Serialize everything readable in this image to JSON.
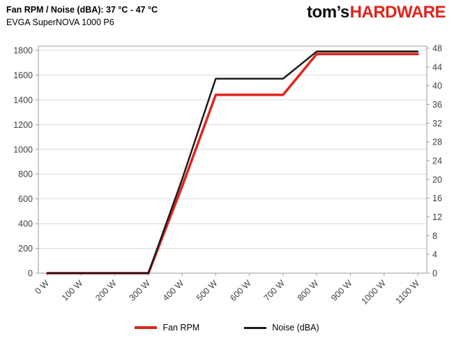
{
  "header": {
    "logo": {
      "black": "tom’s",
      "red": "HARDWARE"
    }
  },
  "colors": {
    "logo_red": "#e2231a",
    "grid": "#d9d9d9",
    "plot_border": "#9b9b9b",
    "tick_text": "#404040",
    "fan_rpm": "#e2231a",
    "noise": "#1a1a1a"
  },
  "chart_data": {
    "type": "line",
    "title": "Fan RPM / Noise (dBA): 37 °C - 47 °C",
    "subtitle": "EVGA SuperNOVA 1000 P6",
    "x": [
      0,
      100,
      200,
      300,
      400,
      500,
      600,
      700,
      800,
      900,
      1000,
      1100
    ],
    "x_tick_labels": [
      "0 W",
      "100 W",
      "200 W",
      "300 W",
      "400 W",
      "500 W",
      "600 W",
      "700 W",
      "800 W",
      "900 W",
      "1000 W",
      "1100 W"
    ],
    "series": [
      {
        "name": "Fan RPM",
        "axis": "left",
        "color": "#e2231a",
        "values": [
          0,
          0,
          0,
          0,
          700,
          1440,
          1440,
          1440,
          1770,
          1770,
          1770,
          1770
        ]
      },
      {
        "name": "Noise (dBA)",
        "axis": "right",
        "color": "#1a1a1a",
        "values": [
          0,
          0,
          0,
          0,
          20,
          41.5,
          41.5,
          41.5,
          47.3,
          47.3,
          47.3,
          47.3
        ]
      }
    ],
    "left_axis": {
      "min": 0,
      "max": 1800,
      "step": 200
    },
    "right_axis": {
      "min": 0,
      "max": 48,
      "step": 4
    },
    "grid": true,
    "legend_position": "bottom"
  }
}
